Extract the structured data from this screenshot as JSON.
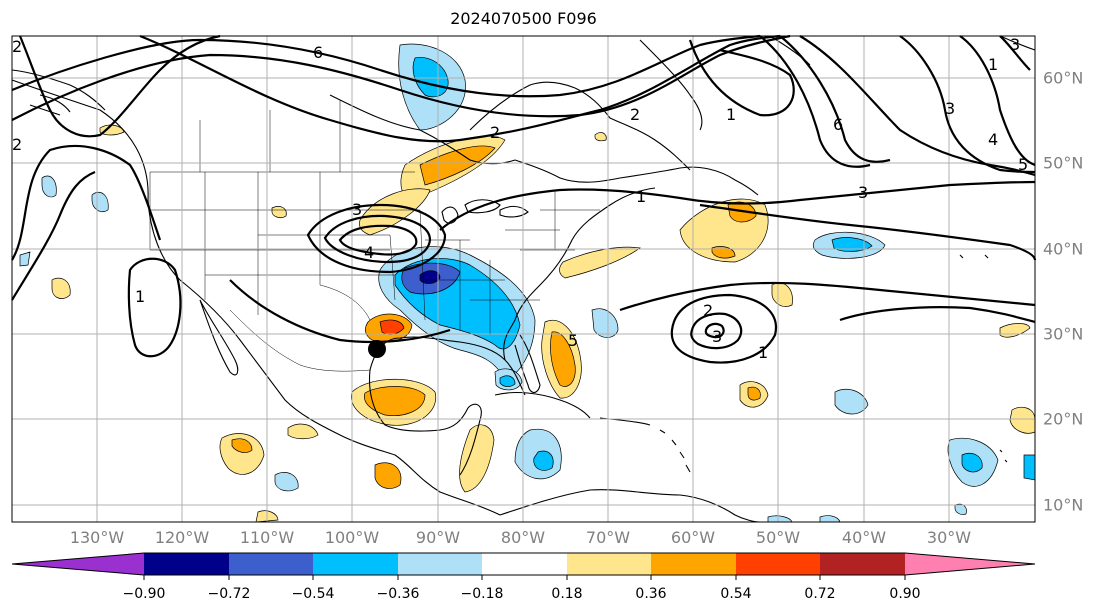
{
  "title": "2024070500 F096",
  "map": {
    "lon_labels": [
      "130°W",
      "120°W",
      "110°W",
      "100°W",
      "90°W",
      "80°W",
      "70°W",
      "60°W",
      "50°W",
      "40°W",
      "30°W"
    ],
    "lat_labels": [
      "60°N",
      "50°N",
      "40°N",
      "30°N",
      "20°N",
      "10°N"
    ],
    "contour_labels": [
      "6",
      "2",
      "1",
      "2",
      "3",
      "4",
      "5",
      "6",
      "1",
      "3",
      "3",
      "4",
      "5",
      "1",
      "2",
      "3",
      "1",
      "2",
      "3",
      "1",
      "2"
    ],
    "marker": "storm-position-dot"
  },
  "colorbar": {
    "ticks": [
      "−0.90",
      "−0.72",
      "−0.54",
      "−0.36",
      "−0.18",
      "0.18",
      "0.36",
      "0.54",
      "0.72",
      "0.90"
    ],
    "colors": [
      "#9b30d0",
      "#00008b",
      "#3c5fcd",
      "#00bfff",
      "#aee0f8",
      "#ffffff",
      "#ffe68c",
      "#ffa500",
      "#ff4000",
      "#b22222",
      "#ff80b0"
    ]
  }
}
